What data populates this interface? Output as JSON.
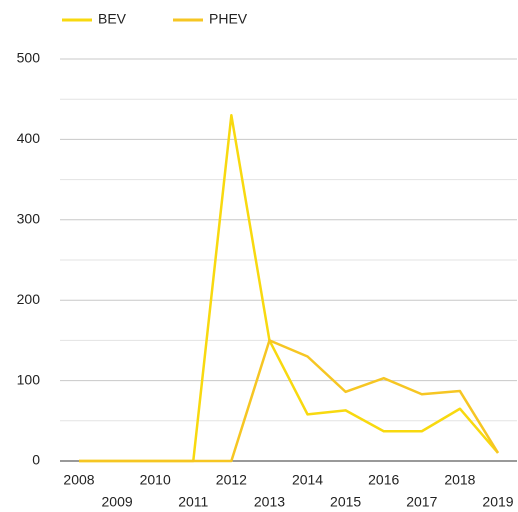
{
  "chart_data": {
    "type": "line",
    "x": [
      2008,
      2009,
      2010,
      2011,
      2012,
      2013,
      2014,
      2015,
      2016,
      2017,
      2018,
      2019
    ],
    "series": [
      {
        "name": "BEV",
        "color": "#f8d90f",
        "values": [
          0,
          0,
          0,
          0,
          430,
          150,
          58,
          63,
          37,
          37,
          65,
          10
        ]
      },
      {
        "name": "PHEV",
        "color": "#f6c623",
        "values": [
          0,
          0,
          0,
          0,
          0,
          150,
          130,
          86,
          103,
          83,
          87,
          10
        ]
      }
    ],
    "xlim": [
      2008,
      2019
    ],
    "xticks": [
      2008,
      2009,
      2010,
      2011,
      2012,
      2013,
      2014,
      2015,
      2016,
      2017,
      2018,
      2019
    ],
    "ylim": [
      0,
      500
    ],
    "yticks": [
      0,
      100,
      200,
      300,
      400,
      500
    ],
    "minor_yticks": [
      50,
      150,
      250,
      350,
      450
    ],
    "grid": true,
    "legend": "top-left"
  }
}
